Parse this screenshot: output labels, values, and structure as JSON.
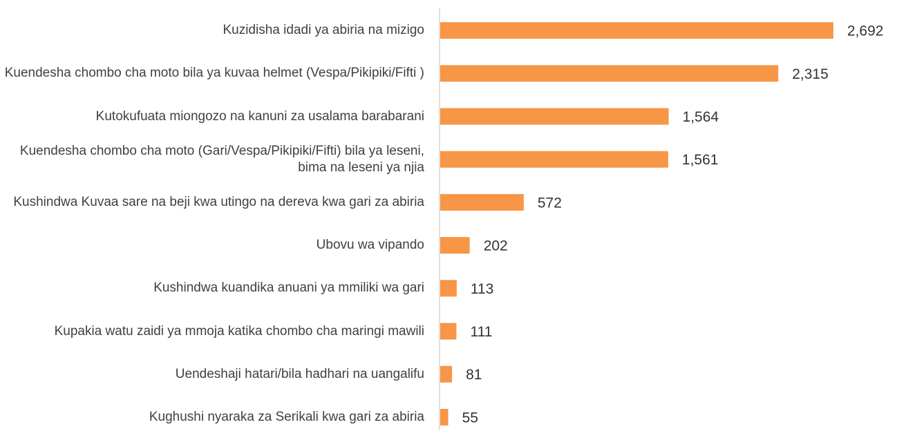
{
  "chart_data": {
    "type": "bar",
    "orientation": "horizontal",
    "categories": [
      "Kuzidisha idadi ya abiria na mizigo",
      "Kuendesha chombo cha moto bila ya kuvaa helmet (Vespa/Pikipiki/Fifti )",
      "Kutokufuata miongozo na kanuni za usalama barabarani",
      "Kuendesha chombo cha moto (Gari/Vespa/Pikipiki/Fifti) bila ya leseni, bima na leseni ya njia",
      "Kushindwa Kuvaa sare na beji kwa utingo na dereva kwa gari za abiria",
      "Ubovu wa vipando",
      "Kushindwa kuandika anuani ya mmiliki wa gari",
      "Kupakia watu zaidi ya mmoja katika chombo cha maringi mawili",
      "Uendeshaji hatari/bila hadhari na uangalifu",
      "Kughushi nyaraka za Serikali kwa gari za abiria"
    ],
    "values": [
      2692,
      2315,
      1564,
      1561,
      572,
      202,
      113,
      111,
      81,
      55
    ],
    "value_labels": [
      "2,692",
      "2,315",
      "1,564",
      "1,561",
      "572",
      "202",
      "113",
      "111",
      "81",
      "55"
    ],
    "color": "#f79646",
    "xlim": [
      0,
      3000
    ]
  }
}
